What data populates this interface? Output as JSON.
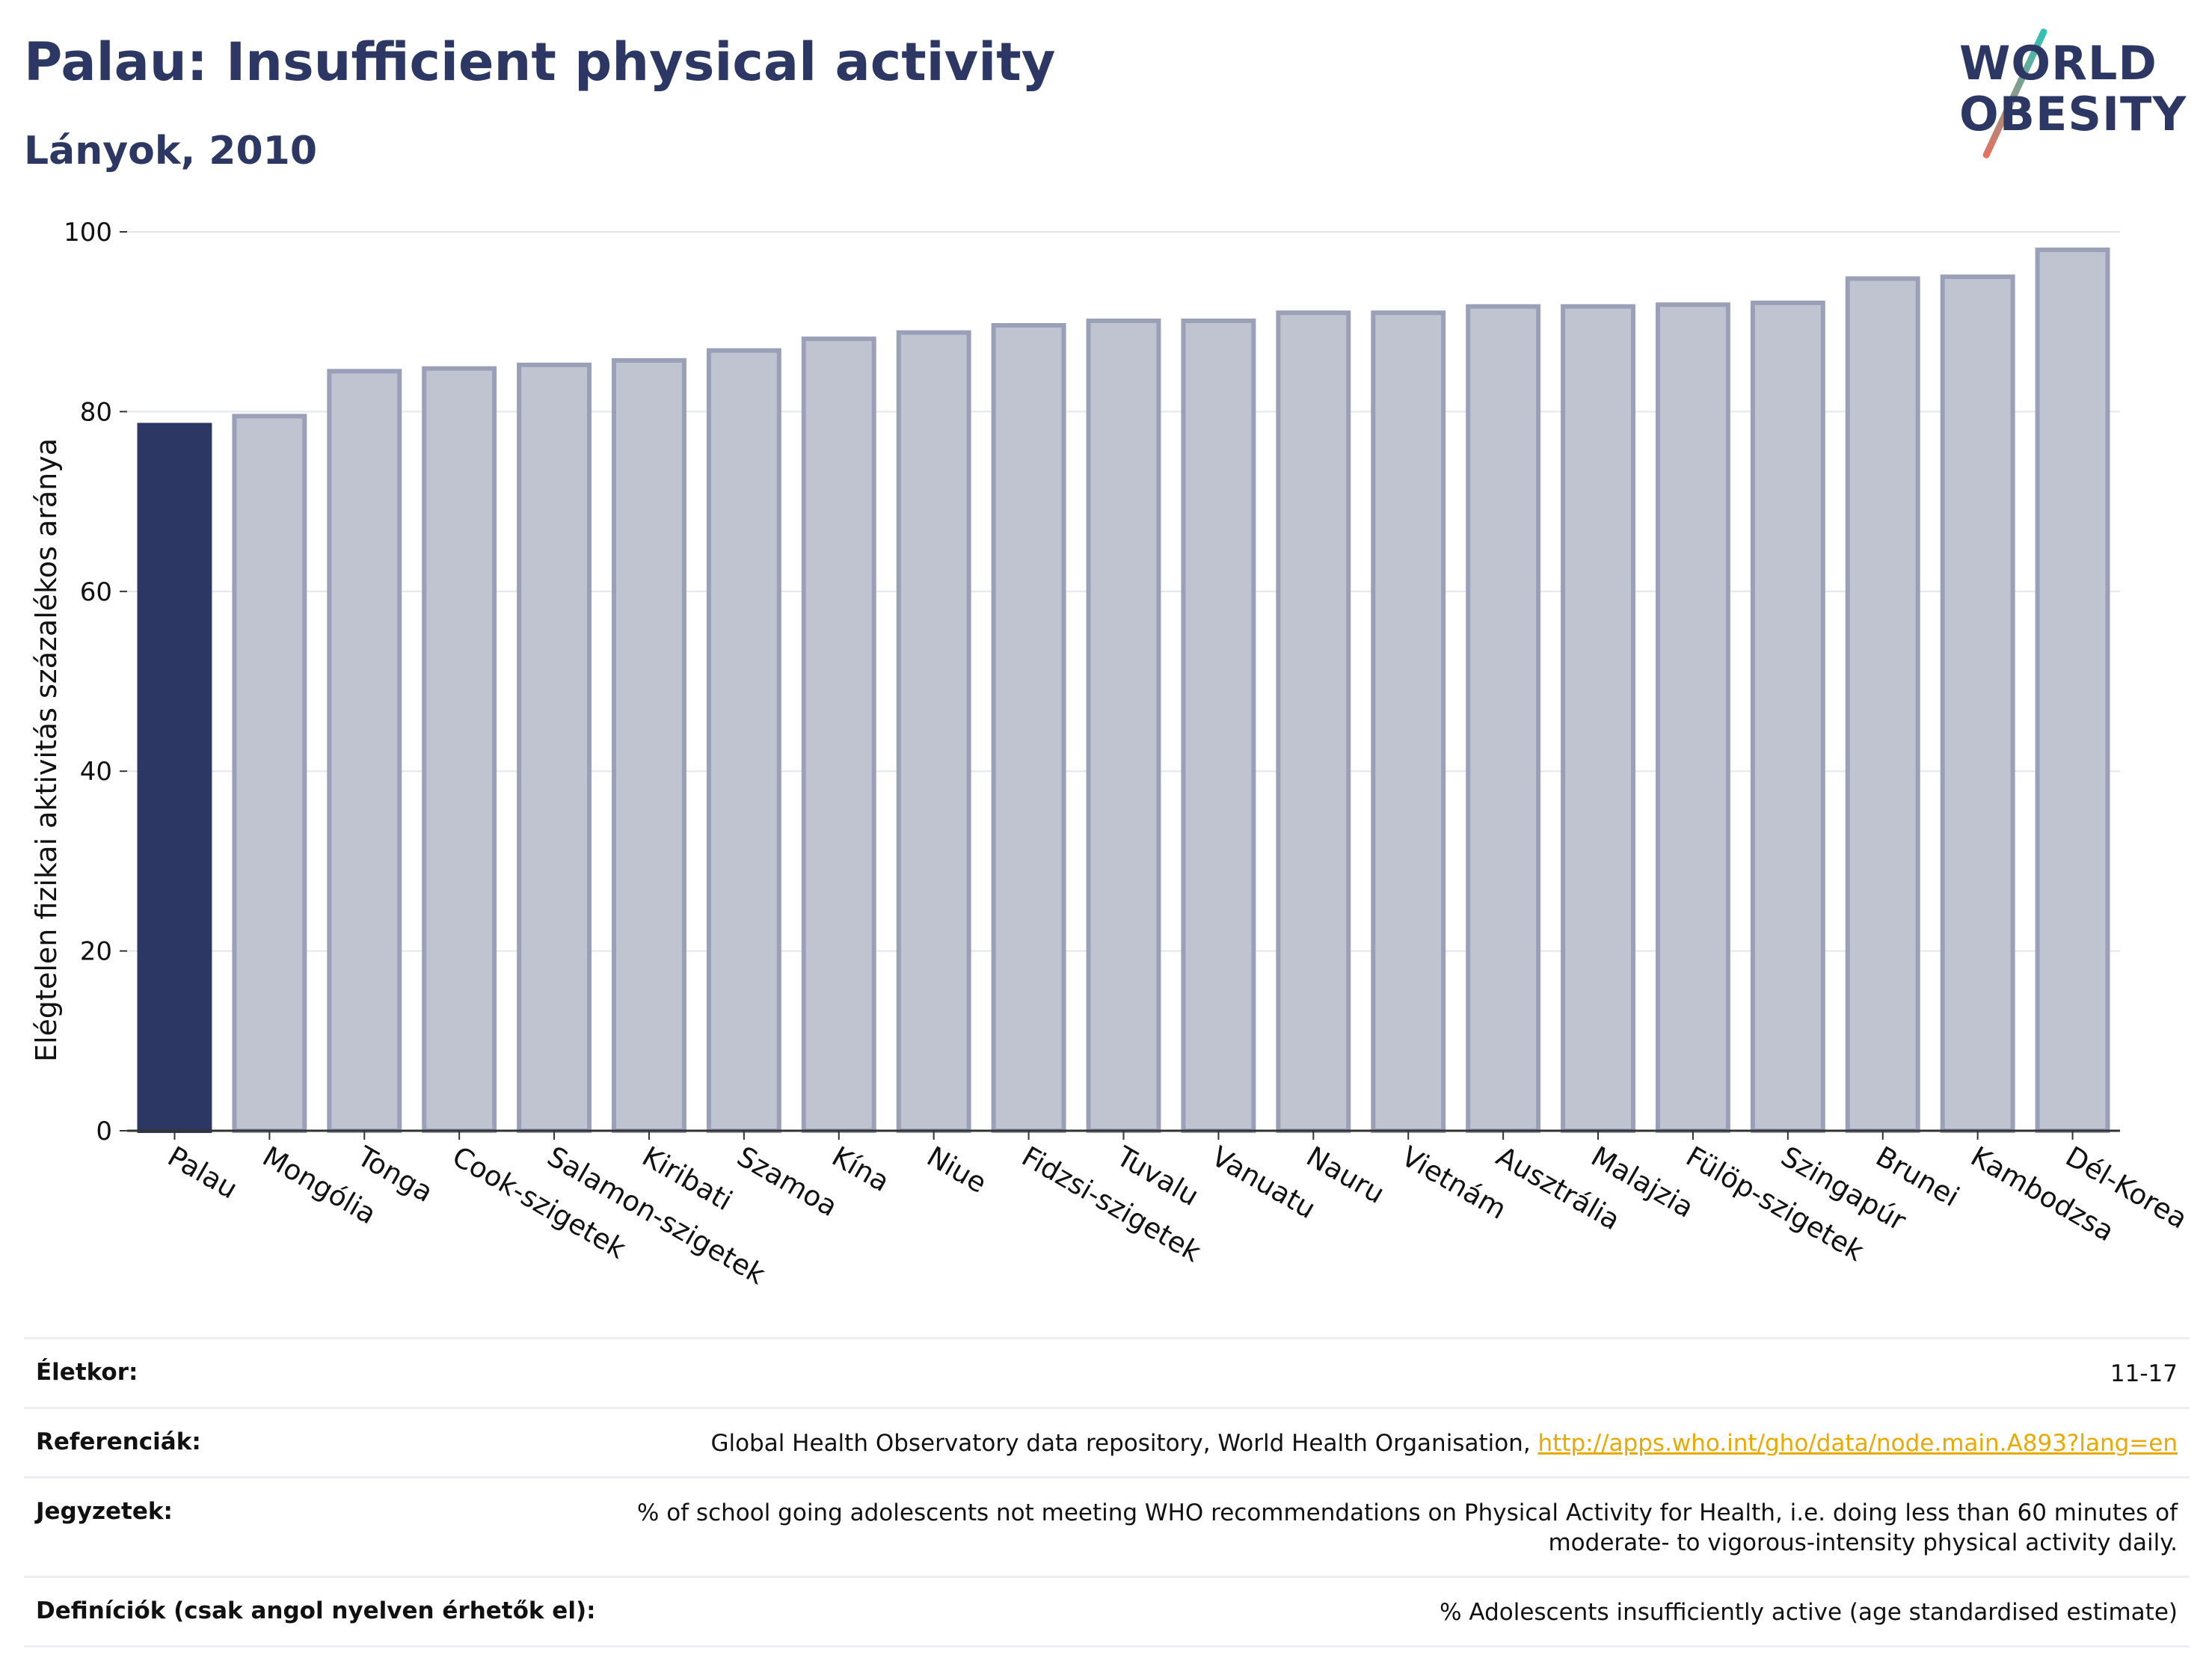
{
  "header": {
    "title": "Palau: Insufficient physical activity",
    "subtitle": "Lányok, 2010"
  },
  "logo": {
    "line1": "WORLD",
    "line2": "OBESITY"
  },
  "colors": {
    "highlight": "#2c3863",
    "bar": "#c0c3d0",
    "bar_stroke": "#9aa0b8",
    "grid": "#e4e6ee"
  },
  "chart_data": {
    "type": "bar",
    "ylabel": "Elégtelen fizikai aktivitás százalékos aránya",
    "ylim": [
      0,
      100
    ],
    "yticks": [
      0,
      20,
      40,
      60,
      80,
      100
    ],
    "grid": true,
    "highlight": "Palau",
    "categories": [
      "Palau",
      "Mongólia",
      "Tonga",
      "Cook-szigetek",
      "Salamon-szigetek",
      "Kiribati",
      "Szamoa",
      "Kína",
      "Niue",
      "Fidzsi-szigetek",
      "Tuvalu",
      "Vanuatu",
      "Nauru",
      "Vietnám",
      "Ausztrália",
      "Malajzia",
      "Fülöp-szigetek",
      "Szingapúr",
      "Brunei",
      "Kambodzsa",
      "Dél-Korea"
    ],
    "values": [
      78.5,
      79.5,
      84.5,
      84.8,
      85.2,
      85.7,
      86.8,
      88.1,
      88.8,
      89.6,
      90.1,
      90.1,
      91.0,
      91.0,
      91.7,
      91.7,
      91.9,
      92.1,
      94.8,
      95.0,
      98.0
    ]
  },
  "meta": {
    "rows": [
      {
        "key": "Életkor:",
        "value": "11-17"
      },
      {
        "key": "Referenciák:",
        "value": "Global Health Observatory data repository, World Health Organisation, ",
        "link": "http://apps.who.int/gho/data/node.main.A893?lang=en"
      },
      {
        "key": "Jegyzetek:",
        "value": "% of school going adolescents not meeting WHO recommendations on Physical Activity for Health, i.e. doing less than 60 minutes of moderate- to vigorous-intensity physical activity daily."
      },
      {
        "key": "Definíciók (csak angol nyelven érhetők el):",
        "value": "% Adolescents insufficiently active (age standardised estimate)"
      }
    ]
  }
}
